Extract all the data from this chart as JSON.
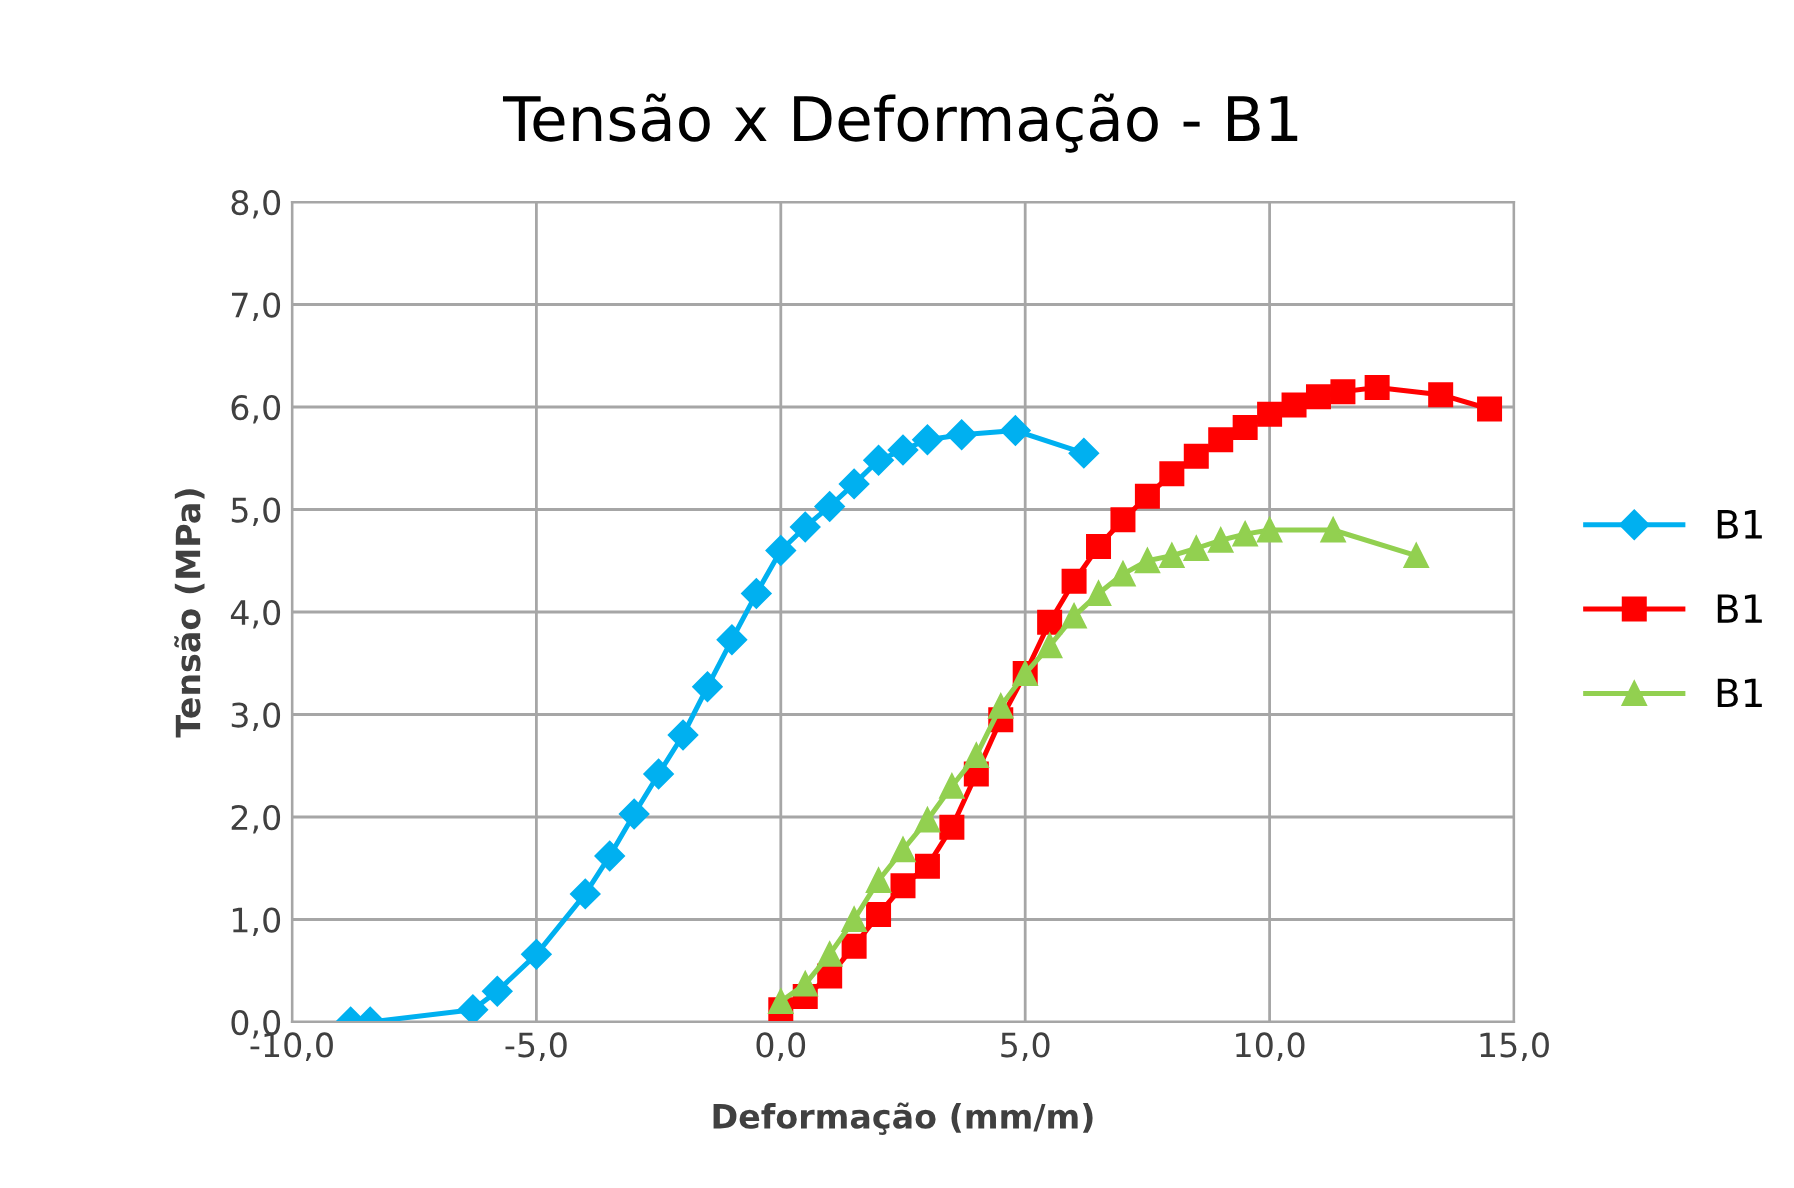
{
  "chart_data": {
    "type": "line",
    "title": "Tensão x Deformação - B1",
    "xlabel": "Deformação (mm/m)",
    "ylabel": "Tensão (MPa)",
    "xlim": [
      -10,
      15
    ],
    "ylim": [
      0,
      8
    ],
    "xticks": [
      {
        "value": -10,
        "label": "-10,0"
      },
      {
        "value": -5,
        "label": "-5,0"
      },
      {
        "value": 0,
        "label": "0,0"
      },
      {
        "value": 5,
        "label": "5,0"
      },
      {
        "value": 10,
        "label": "10,0"
      },
      {
        "value": 15,
        "label": "15,0"
      }
    ],
    "yticks": [
      {
        "value": 0,
        "label": "0,0"
      },
      {
        "value": 1,
        "label": "1,0"
      },
      {
        "value": 2,
        "label": "2,0"
      },
      {
        "value": 3,
        "label": "3,0"
      },
      {
        "value": 4,
        "label": "4,0"
      },
      {
        "value": 5,
        "label": "5,0"
      },
      {
        "value": 6,
        "label": "6,0"
      },
      {
        "value": 7,
        "label": "7,0"
      },
      {
        "value": 8,
        "label": "8,0"
      }
    ],
    "grid": true,
    "legend": "right",
    "series": [
      {
        "name": "B1",
        "color": "#00b0f0",
        "marker": "diamond",
        "x": [
          -8.8,
          -8.4,
          -6.3,
          -5.8,
          -5.0,
          -4.0,
          -3.5,
          -3.0,
          -2.5,
          -2.0,
          -1.5,
          -1.0,
          -0.5,
          0,
          0.5,
          1.0,
          1.5,
          2.0,
          2.5,
          3.0,
          3.7,
          4.8,
          6.2
        ],
        "values": [
          0,
          0,
          0.12,
          0.3,
          0.66,
          1.25,
          1.62,
          2.03,
          2.42,
          2.8,
          3.27,
          3.73,
          4.18,
          4.6,
          4.83,
          5.03,
          5.25,
          5.48,
          5.58,
          5.68,
          5.73,
          5.77,
          5.55
        ]
      },
      {
        "name": "B1",
        "color": "#ff0000",
        "marker": "square",
        "x": [
          0,
          0.5,
          1.0,
          1.5,
          2.0,
          2.5,
          3.0,
          3.5,
          4.0,
          4.5,
          5.0,
          5.5,
          6.0,
          6.5,
          7.0,
          7.5,
          8.0,
          8.5,
          9.0,
          9.5,
          10.0,
          10.5,
          11.0,
          11.5,
          12.2,
          13.5,
          14.5
        ],
        "values": [
          0.12,
          0.25,
          0.45,
          0.74,
          1.05,
          1.33,
          1.52,
          1.9,
          2.42,
          2.95,
          3.4,
          3.9,
          4.3,
          4.64,
          4.9,
          5.13,
          5.35,
          5.52,
          5.68,
          5.8,
          5.93,
          6.02,
          6.1,
          6.15,
          6.19,
          6.12,
          5.98
        ]
      },
      {
        "name": "B1",
        "color": "#92d050",
        "marker": "triangle",
        "x": [
          0,
          0.5,
          1.0,
          1.5,
          2.0,
          2.5,
          3.0,
          3.5,
          4.0,
          4.5,
          5.0,
          5.5,
          6.0,
          6.5,
          7.0,
          7.5,
          8.0,
          8.5,
          9.0,
          9.5,
          10.0,
          11.3,
          13.0
        ],
        "values": [
          0.2,
          0.37,
          0.66,
          1.0,
          1.38,
          1.68,
          1.97,
          2.3,
          2.6,
          3.08,
          3.4,
          3.67,
          3.96,
          4.18,
          4.37,
          4.5,
          4.55,
          4.62,
          4.7,
          4.76,
          4.8,
          4.8,
          4.55
        ]
      }
    ]
  }
}
